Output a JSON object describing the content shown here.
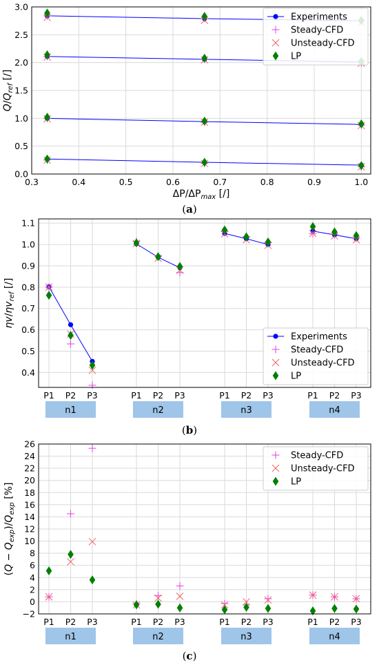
{
  "chart_data": [
    {
      "type": "scatter",
      "caption": "(a)",
      "xlabel": "ΔP/ΔP_max [/]",
      "ylabel": "Q/Q_ref [/]",
      "xlim": [
        0.3,
        1.02
      ],
      "ylim": [
        0,
        3.0
      ],
      "xticks": [
        "0.3",
        "0.4",
        "0.5",
        "0.6",
        "0.7",
        "0.8",
        "0.9",
        "1.0"
      ],
      "yticks": [
        "0.0",
        "0.5",
        "1.0",
        "1.5",
        "2.0",
        "2.5",
        "3.0"
      ],
      "grid": true,
      "legend_position": "top-right",
      "series": [
        {
          "name": "Experiments",
          "marker": "circle-line",
          "color": "#0000ff",
          "groups": [
            {
              "x": [
                0.333,
                0.667,
                1.0
              ],
              "y": [
                2.84,
                2.79,
                2.75
              ]
            },
            {
              "x": [
                0.333,
                0.667,
                1.0
              ],
              "y": [
                2.11,
                2.06,
                2.01
              ]
            },
            {
              "x": [
                0.333,
                0.667,
                1.0
              ],
              "y": [
                1.0,
                0.94,
                0.89
              ]
            },
            {
              "x": [
                0.333,
                0.667,
                1.0
              ],
              "y": [
                0.27,
                0.21,
                0.16
              ]
            }
          ]
        },
        {
          "name": "Steady-CFD",
          "marker": "plus",
          "color": "#e040e0",
          "groups": [
            {
              "x": [
                0.333,
                0.667,
                1.0
              ],
              "y": [
                2.84,
                2.79,
                2.75
              ]
            },
            {
              "x": [
                0.333,
                0.667,
                1.0
              ],
              "y": [
                2.11,
                2.06,
                2.0
              ]
            },
            {
              "x": [
                0.333,
                0.667,
                1.0
              ],
              "y": [
                1.0,
                0.93,
                0.88
              ]
            },
            {
              "x": [
                0.333,
                0.667,
                1.0
              ],
              "y": [
                0.25,
                0.19,
                0.13
              ]
            }
          ]
        },
        {
          "name": "Unsteady-CFD",
          "marker": "x",
          "color": "#f26060",
          "groups": [
            {
              "x": [
                0.333,
                0.667,
                1.0
              ],
              "y": [
                2.81,
                2.76,
                2.72
              ]
            },
            {
              "x": [
                0.333,
                0.667,
                1.0
              ],
              "y": [
                2.1,
                2.05,
                1.99
              ]
            },
            {
              "x": [
                0.333,
                0.667,
                1.0
              ],
              "y": [
                0.99,
                0.93,
                0.87
              ]
            },
            {
              "x": [
                0.333,
                0.667,
                1.0
              ],
              "y": [
                0.25,
                0.19,
                0.13
              ]
            }
          ]
        },
        {
          "name": "LP",
          "marker": "diamond",
          "color": "#008000",
          "groups": [
            {
              "x": [
                0.333,
                0.667,
                1.0
              ],
              "y": [
                2.89,
                2.83,
                2.76
              ]
            },
            {
              "x": [
                0.333,
                0.667,
                1.0
              ],
              "y": [
                2.14,
                2.08,
                2.02
              ]
            },
            {
              "x": [
                0.333,
                0.667,
                1.0
              ],
              "y": [
                1.02,
                0.95,
                0.9
              ]
            },
            {
              "x": [
                0.333,
                0.667,
                1.0
              ],
              "y": [
                0.27,
                0.21,
                0.15
              ]
            }
          ]
        }
      ]
    },
    {
      "type": "scatter",
      "caption": "(b)",
      "xlabel": "",
      "ylabel": "ηv/ηv_ref [/]",
      "ylim": [
        0.33,
        1.12
      ],
      "yticks": [
        "0.4",
        "0.5",
        "0.6",
        "0.7",
        "0.8",
        "0.9",
        "1.0",
        "1.1"
      ],
      "categories": [
        "P1",
        "P2",
        "P3"
      ],
      "groups": [
        "n1",
        "n2",
        "n3",
        "n4"
      ],
      "grid": true,
      "legend_position": "bottom-right",
      "series": [
        {
          "name": "Experiments",
          "marker": "circle-line",
          "color": "#0000ff",
          "values": [
            [
              0.802,
              0.624,
              0.452
            ],
            [
              1.003,
              0.94,
              0.891
            ],
            [
              1.052,
              1.027,
              1.0
            ],
            [
              1.063,
              1.045,
              1.027
            ]
          ]
        },
        {
          "name": "Steady-CFD",
          "marker": "plus",
          "color": "#e040e0",
          "values": [
            [
              0.8,
              0.534,
              0.34
            ],
            [
              1.015,
              0.945,
              0.868
            ],
            [
              1.06,
              1.035,
              1.008
            ],
            [
              1.05,
              1.048,
              1.03
            ]
          ]
        },
        {
          "name": "Unsteady-CFD",
          "marker": "x",
          "color": "#f26060",
          "values": [
            [
              0.8,
              0.58,
              0.41
            ],
            [
              1.005,
              0.935,
              0.88
            ],
            [
              1.05,
              1.022,
              0.996
            ],
            [
              1.052,
              1.04,
              1.022
            ]
          ]
        },
        {
          "name": "LP",
          "marker": "diamond",
          "color": "#008000",
          "values": [
            [
              0.762,
              0.574,
              0.434
            ],
            [
              1.008,
              0.943,
              0.897
            ],
            [
              1.068,
              1.036,
              1.012
            ],
            [
              1.084,
              1.059,
              1.042
            ]
          ]
        }
      ]
    },
    {
      "type": "scatter",
      "caption": "(c)",
      "xlabel": "",
      "ylabel": "(Q − Q_exp)/Q_exp [%]",
      "ylim": [
        -2,
        26
      ],
      "yticks": [
        "−2",
        "0",
        "2",
        "4",
        "6",
        "8",
        "10",
        "12",
        "14",
        "16",
        "18",
        "20",
        "22",
        "24",
        "26"
      ],
      "categories": [
        "P1",
        "P2",
        "P3"
      ],
      "groups": [
        "n1",
        "n2",
        "n3",
        "n4"
      ],
      "grid": true,
      "legend_position": "top-right",
      "series": [
        {
          "name": "Steady-CFD",
          "marker": "plus",
          "color": "#e040e0",
          "values": [
            [
              0.8,
              14.5,
              25.3
            ],
            [
              -0.3,
              1.0,
              2.6
            ],
            [
              -0.3,
              -0.5,
              0.5
            ],
            [
              1.1,
              0.8,
              0.5
            ]
          ]
        },
        {
          "name": "Unsteady-CFD",
          "marker": "x",
          "color": "#f26060",
          "values": [
            [
              0.8,
              6.6,
              9.9
            ],
            [
              -0.5,
              0.6,
              0.9
            ],
            [
              -0.5,
              0.0,
              0.3
            ],
            [
              1.1,
              0.8,
              0.5
            ]
          ]
        },
        {
          "name": "LP",
          "marker": "diamond",
          "color": "#008000",
          "values": [
            [
              5.1,
              7.8,
              3.6
            ],
            [
              -0.5,
              -0.4,
              -1.0
            ],
            [
              -1.3,
              -0.9,
              -1.1
            ],
            [
              -1.5,
              -1.1,
              -1.2
            ]
          ]
        }
      ]
    }
  ]
}
